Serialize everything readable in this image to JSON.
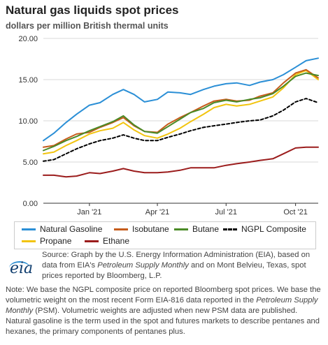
{
  "title": "Natural gas liquids spot prices",
  "subtitle": "dollars per million British thermal units",
  "source_parts": {
    "p1": "Source: Graph by the U.S. Energy Information Administration (EIA), based on data from EIA's ",
    "italic1": "Petroleum Supply Monthly",
    "p2": " and on Mont Belvieu, Texas, spot prices reported by Bloomberg, L.P."
  },
  "note_parts": {
    "p1": "Note: We base the NGPL composite price on reported Bloomberg spot prices. We base the volumetric weight on the most recent Form EIA-816 data reported in the ",
    "italic1": "Petroleum Supply Monthly",
    "p2": " (PSM). Volumetric weights are adjusted when new PSM data are published. Natural gasoline is the term used in the spot and futures markets to describe pentanes and hexanes, the primary components of pentanes plus."
  },
  "logo_text": "eia",
  "colors": {
    "natural_gasoline": "#2b8fd6",
    "isobutane": "#c65c1c",
    "butane": "#4a8a27",
    "ngpl_composite": "#000000",
    "propane": "#f2c40f",
    "ethane": "#9b1c1c",
    "grid": "#d9d9d9",
    "axis": "#333333"
  },
  "chart_data": {
    "type": "line",
    "x_unit": "date",
    "x_start": "2020-11-01",
    "x_end": "2021-10-31",
    "xtick_labels": [
      "Jan '21",
      "Apr '21",
      "Jul '21",
      "Oct '21"
    ],
    "xtick_dates": [
      "2021-01-01",
      "2021-04-01",
      "2021-07-01",
      "2021-10-01"
    ],
    "ylim": [
      0,
      20
    ],
    "yticks": [
      0,
      5,
      10,
      15,
      20
    ],
    "ytick_labels": [
      "0.00",
      "5.00",
      "10.00",
      "15.00",
      "20.00"
    ],
    "grid": true,
    "legend_position": "bottom",
    "x": [
      "2020-11-01",
      "2020-11-15",
      "2020-12-01",
      "2020-12-15",
      "2021-01-01",
      "2021-01-15",
      "2021-02-01",
      "2021-02-15",
      "2021-03-01",
      "2021-03-15",
      "2021-04-01",
      "2021-04-15",
      "2021-05-01",
      "2021-05-15",
      "2021-06-01",
      "2021-06-15",
      "2021-07-01",
      "2021-07-15",
      "2021-08-01",
      "2021-08-15",
      "2021-09-01",
      "2021-09-15",
      "2021-10-01",
      "2021-10-15",
      "2021-10-31"
    ],
    "series": [
      {
        "name": "Natural Gasoline",
        "key": "natural_gasoline",
        "dashed": false,
        "values": [
          7.6,
          8.5,
          9.8,
          10.8,
          11.9,
          12.2,
          13.2,
          13.8,
          13.2,
          12.3,
          12.6,
          13.5,
          13.4,
          13.2,
          13.8,
          14.2,
          14.5,
          14.6,
          14.3,
          14.7,
          15.0,
          15.6,
          16.5,
          17.3,
          17.6
        ]
      },
      {
        "name": "Isobutane",
        "key": "isobutane",
        "dashed": false,
        "values": [
          6.8,
          7.0,
          7.8,
          8.4,
          8.6,
          9.2,
          9.8,
          10.4,
          9.4,
          8.7,
          8.6,
          9.6,
          10.4,
          11.0,
          11.8,
          12.4,
          12.6,
          12.4,
          12.5,
          13.0,
          13.4,
          14.6,
          15.8,
          16.2,
          15.2
        ]
      },
      {
        "name": "Butane",
        "key": "butane",
        "dashed": false,
        "values": [
          6.4,
          6.9,
          7.6,
          8.1,
          8.8,
          9.3,
          9.9,
          10.6,
          9.5,
          8.7,
          8.5,
          9.3,
          10.2,
          11.0,
          11.5,
          12.2,
          12.5,
          12.3,
          12.6,
          12.8,
          13.3,
          14.2,
          15.4,
          15.8,
          15.5
        ]
      },
      {
        "name": "NGPL Composite",
        "key": "ngpl_composite",
        "dashed": true,
        "values": [
          5.1,
          5.3,
          6.0,
          6.6,
          7.2,
          7.6,
          7.9,
          8.3,
          7.9,
          7.6,
          7.6,
          8.0,
          8.4,
          8.8,
          9.2,
          9.4,
          9.6,
          9.8,
          10.0,
          10.1,
          10.6,
          11.3,
          12.3,
          12.7,
          12.2
        ]
      },
      {
        "name": "Propane",
        "key": "propane",
        "dashed": false,
        "values": [
          6.0,
          6.2,
          7.0,
          7.6,
          8.4,
          8.8,
          9.1,
          9.8,
          8.9,
          8.2,
          7.9,
          8.4,
          9.1,
          9.9,
          10.8,
          11.6,
          12.0,
          11.8,
          12.0,
          12.4,
          12.9,
          14.0,
          15.6,
          16.1,
          15.0
        ]
      },
      {
        "name": "Ethane",
        "key": "ethane",
        "dashed": false,
        "values": [
          3.4,
          3.4,
          3.2,
          3.3,
          3.7,
          3.6,
          3.9,
          4.2,
          3.9,
          3.7,
          3.7,
          3.8,
          4.0,
          4.3,
          4.3,
          4.3,
          4.6,
          4.8,
          5.0,
          5.2,
          5.4,
          6.0,
          6.7,
          6.8,
          6.8
        ]
      }
    ]
  }
}
